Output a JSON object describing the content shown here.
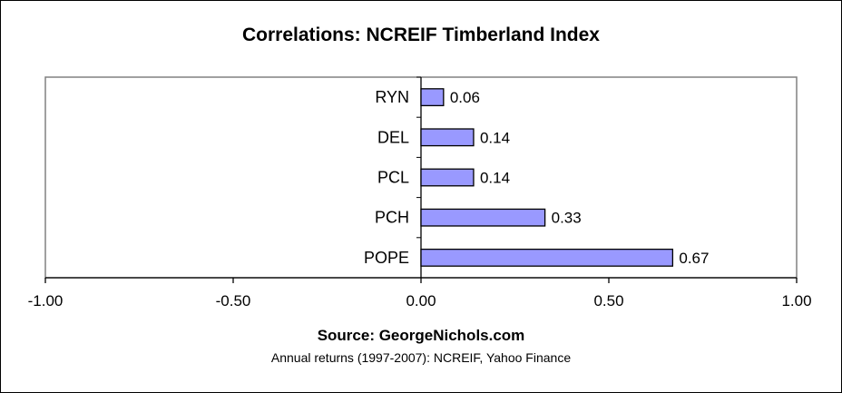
{
  "chart_data": {
    "type": "bar",
    "orientation": "horizontal",
    "title": "Correlations: NCREIF Timberland Index",
    "categories": [
      "RYN",
      "DEL",
      "PCL",
      "PCH",
      "POPE"
    ],
    "values": [
      0.06,
      0.14,
      0.14,
      0.33,
      0.67
    ],
    "data_labels": [
      "0.06",
      "0.14",
      "0.14",
      "0.33",
      "0.67"
    ],
    "xlim": [
      -1.0,
      1.0
    ],
    "x_ticks": [
      -1.0,
      -0.5,
      0.0,
      0.5,
      1.0
    ],
    "x_tick_labels": [
      "-1.00",
      "-0.50",
      "0.00",
      "0.50",
      "1.00"
    ],
    "grid": false,
    "legend": "none",
    "bar_color": "#9999ff",
    "bar_edge_color": "#000000",
    "footnotes": [
      "Source: GeorgeNichols.com",
      "Annual returns (1997-2007): NCREIF, Yahoo Finance"
    ]
  }
}
